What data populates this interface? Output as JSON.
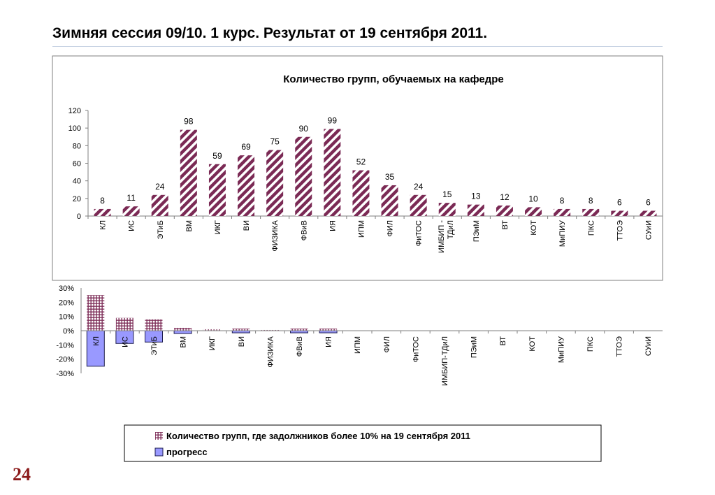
{
  "slide": {
    "title": "Зимняя сессия 09/10.   1 курс.  Результат от 19 сентября 2011.",
    "page_number": "24"
  },
  "chart_data": [
    {
      "type": "bar",
      "title": "Количество групп, обучаемых на кафедре",
      "categories": [
        "КЛ",
        "ИС",
        "ЭТиБ",
        "ВМ",
        "ИКГ",
        "ВИ",
        "ФИЗИКА",
        "ФВиВ",
        "ИЯ",
        "ИПМ",
        "ФИЛ",
        "ФиТОС",
        "ИМБИП - ТДиЛ",
        "ПЭиМ",
        "ВТ",
        "КОТ",
        "МиПИУ",
        "ПКС",
        "ТТОЭ",
        "СУиИ"
      ],
      "values": [
        8,
        11,
        24,
        98,
        59,
        69,
        75,
        90,
        99,
        52,
        35,
        24,
        15,
        13,
        12,
        10,
        8,
        8,
        6,
        6
      ],
      "ylim": [
        0,
        120
      ],
      "yticks": [
        0,
        20,
        40,
        60,
        80,
        100,
        120
      ],
      "xlabel": "",
      "ylabel": "",
      "data_labels": true,
      "color": "#7b2a55",
      "pattern": "diagonal-stripes"
    },
    {
      "type": "bar",
      "categories": [
        "КЛ",
        "ИС",
        "ЭТиБ",
        "ВМ",
        "ИКГ",
        "ВИ",
        "ФИЗИКА",
        "ФВиВ",
        "ИЯ",
        "ИПМ",
        "ФИЛ",
        "ФиТОС",
        "ИМБИП - ТДиЛ",
        "ПЭиМ",
        "ВТ",
        "КОТ",
        "МиПИУ",
        "ПКС",
        "ТТОЭ",
        "СУиИ"
      ],
      "series": [
        {
          "name": "Количество групп, где задолжников более  10% на 19 сентября 2011",
          "values": [
            25,
            9,
            8,
            2,
            1,
            1.5,
            0.5,
            1.5,
            1.5,
            0,
            0,
            0,
            0,
            0,
            0,
            0,
            0,
            0,
            0,
            0
          ],
          "color": "#7b2a55",
          "pattern": "grid"
        },
        {
          "name": "прогресс",
          "values": [
            -25,
            -9,
            -8,
            -2,
            0,
            -1.5,
            0,
            -1.5,
            -1.5,
            0,
            0,
            0,
            0,
            0,
            0,
            0,
            0,
            0,
            0,
            0
          ],
          "color": "#9999ff"
        }
      ],
      "ylim": [
        -30,
        30
      ],
      "yticks": [
        "30%",
        "20%",
        "10%",
        "0%",
        "-10%",
        "-20%",
        "-30%"
      ],
      "legend_position": "bottom"
    }
  ]
}
